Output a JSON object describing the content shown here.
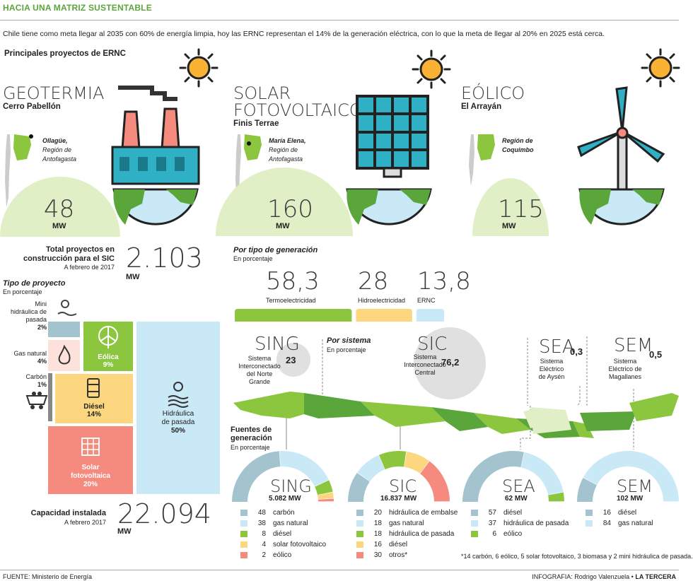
{
  "header": {
    "title": "HACIA UNA MATRIZ SUSTENTABLE",
    "intro": "Chile tiene como meta llegar al 2035 con 60% de energía limpia, hoy las ERNC representan el 14% de la generación eléctrica, con lo que la meta de llegar al 20% en 2025 está cerca.",
    "subtitle": "Principales proyectos de ERNC"
  },
  "projects": [
    {
      "type": "GEOTERMIA",
      "name": "Cerro Pabellón",
      "location": "Ollagüe, Región de Antofagasta",
      "loc1": "Ollagüe,",
      "loc2": "Región de",
      "loc3": "Antofagasta",
      "value": "48",
      "unit": "MW"
    },
    {
      "type1": "SOLAR",
      "type2": "FOTOVOLTAICO",
      "name": "Finis Terrae",
      "loc1": "María Elena,",
      "loc2": "Región de",
      "loc3": "Antofagasta",
      "value": "160",
      "unit": "MW"
    },
    {
      "type": "EÓLICO",
      "name": "El Arrayán",
      "loc1": "Región de",
      "loc2": "Coquimbo",
      "value": "115",
      "unit": "MW"
    }
  ],
  "total": {
    "label1": "Total proyectos en",
    "label2": "construcción para el SIC",
    "date": "A febrero de 2017",
    "value": "2.103",
    "unit": "MW"
  },
  "tipo_proyecto": {
    "title": "Tipo de proyecto",
    "sub": "En porcentaje",
    "items": [
      {
        "name1": "Mini",
        "name2": "hidráulica de",
        "name3": "pasada",
        "pct": "2%"
      },
      {
        "name": "Gas natural",
        "pct": "4%"
      },
      {
        "name": "Carbón",
        "pct": "1%"
      },
      {
        "name": "Eólica",
        "pct": "9%"
      },
      {
        "name": "Diésel",
        "pct": "14%"
      },
      {
        "name1": "Solar",
        "name2": "fotovoltaica",
        "pct": "20%"
      },
      {
        "name1": "Hidráulica",
        "name2": "de pasada",
        "pct": "50%"
      }
    ]
  },
  "capacidad": {
    "label": "Capacidad instalada",
    "date": "A febrero 2017",
    "value": "22.094",
    "unit": "MW"
  },
  "por_tipo": {
    "title": "Por tipo de generación",
    "sub": "En porcentaje",
    "items": [
      {
        "value": "58,3",
        "label": "Termoelectricidad",
        "color": "#8cc63f"
      },
      {
        "value": "28",
        "label": "Hidroelectricidad",
        "color": "#fcd77f"
      },
      {
        "value": "13,8",
        "label": "ERNC",
        "color": "#c9e9f6"
      }
    ]
  },
  "sistemas": {
    "title": "Por sistema",
    "sub": "En porcentaje",
    "items": [
      {
        "code": "SING",
        "desc1": "Sistema",
        "desc2": "Interconectado",
        "desc3": "del Norte",
        "desc4": "Grande",
        "value": "23"
      },
      {
        "code": "SIC",
        "desc1": "Sistema",
        "desc2": "Interconectado",
        "desc3": "Central",
        "value": "76,2"
      },
      {
        "code": "SEA",
        "desc1": "Sistema",
        "desc2": "Eléctrico",
        "desc3": "de Aysén",
        "value": "0,3"
      },
      {
        "code": "SEM",
        "desc1": "Sistema",
        "desc2": "Eléctrico de",
        "desc3": "Magallanes",
        "value": "0,5"
      }
    ]
  },
  "fuentes": {
    "title1": "Fuentes de",
    "title2": "generación",
    "sub": "En porcentaje"
  },
  "chart_data": [
    {
      "type": "pie",
      "title": "SING",
      "total": "5.082 MW",
      "labels": [
        "carbón",
        "gas natural",
        "diésel",
        "solar fotovoltaico",
        "eólico"
      ],
      "values": [
        48,
        38,
        8,
        4,
        2
      ],
      "colors": [
        "#a3c3cf",
        "#c9e9f6",
        "#8cc63f",
        "#fcd77f",
        "#f58a7e"
      ]
    },
    {
      "type": "pie",
      "title": "SIC",
      "total": "16.837 MW",
      "labels": [
        "hidráulica de embalse",
        "gas natural",
        "hidráulica de pasada",
        "diésel",
        "otros*"
      ],
      "values": [
        20,
        18,
        18,
        16,
        30
      ],
      "colors": [
        "#a3c3cf",
        "#c9e9f6",
        "#8cc63f",
        "#fcd77f",
        "#f58a7e"
      ]
    },
    {
      "type": "pie",
      "title": "SEA",
      "total": "62 MW",
      "labels": [
        "diésel",
        "hidráulica de pasada",
        "eólico"
      ],
      "values": [
        57,
        37,
        6
      ],
      "colors": [
        "#a3c3cf",
        "#c9e9f6",
        "#8cc63f"
      ]
    },
    {
      "type": "pie",
      "title": "SEM",
      "total": "102 MW",
      "labels": [
        "diésel",
        "gas natural"
      ],
      "values": [
        16,
        84
      ],
      "colors": [
        "#a3c3cf",
        "#c9e9f6"
      ]
    }
  ],
  "footnote": "*14 carbón, 6 eólico, 5 solar fotovoltaico, 3 biomasa y 2 mini hidráulica de pasada.",
  "footer": {
    "source": "FUENTE: Ministerio de Energía",
    "credit_prefix": "INFOGRAFIA: Rodrigo Valenzuela •",
    "credit_brand": "LA TERCERA"
  }
}
